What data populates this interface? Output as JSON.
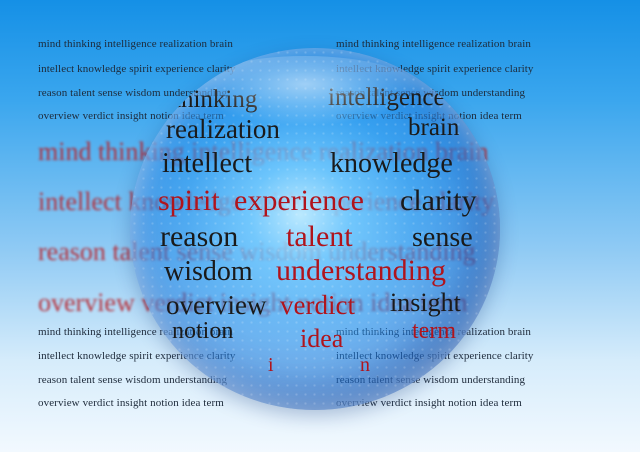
{
  "background_rows": [
    {
      "text": "mind thinking intelligence realization brain",
      "size": "small",
      "row": 0
    },
    {
      "text": "intellect knowledge spirit experience clarity",
      "size": "small",
      "row": 1
    },
    {
      "text": "reason talent sense wisdom understanding",
      "size": "small",
      "row": 2
    },
    {
      "text": "overview verdict insight notion idea term",
      "size": "small",
      "row": 3
    },
    {
      "text": "mind thinking intelligence realization brain",
      "size": "big",
      "row": 0
    },
    {
      "text": "intellect knowledge spirit experience clarity",
      "size": "big",
      "row": 1
    },
    {
      "text": "reason talent sense wisdom understanding",
      "size": "big",
      "row": 2
    },
    {
      "text": "overview verdict insight notion idea term",
      "size": "big",
      "row": 3
    },
    {
      "text": "mind thinking intelligence realization brain",
      "size": "small",
      "row": 4
    },
    {
      "text": "intellect knowledge spirit experience clarity",
      "size": "small",
      "row": 5
    },
    {
      "text": "reason talent sense wisdom understanding",
      "size": "small",
      "row": 6
    },
    {
      "text": "overview verdict insight notion idea term",
      "size": "small",
      "row": 7
    }
  ],
  "sphere_words": [
    {
      "text": "thinking",
      "red": false
    },
    {
      "text": "intelligence",
      "red": false
    },
    {
      "text": "realization",
      "red": false
    },
    {
      "text": "brain",
      "red": false
    },
    {
      "text": "intellect",
      "red": false
    },
    {
      "text": "knowledge",
      "red": false
    },
    {
      "text": "spirit",
      "red": true
    },
    {
      "text": "experience",
      "red": true
    },
    {
      "text": "clarity",
      "red": false
    },
    {
      "text": "reason",
      "red": false
    },
    {
      "text": "talent",
      "red": true
    },
    {
      "text": "sense",
      "red": false
    },
    {
      "text": "wisdom",
      "red": false
    },
    {
      "text": "understanding",
      "red": true
    },
    {
      "text": "overview",
      "red": false
    },
    {
      "text": "verdict",
      "red": true
    },
    {
      "text": "insight",
      "red": false
    },
    {
      "text": "notion",
      "red": false
    },
    {
      "text": "idea",
      "red": true
    },
    {
      "text": "term",
      "red": true
    },
    {
      "text": "i",
      "red": true
    },
    {
      "text": "n",
      "red": true
    }
  ]
}
